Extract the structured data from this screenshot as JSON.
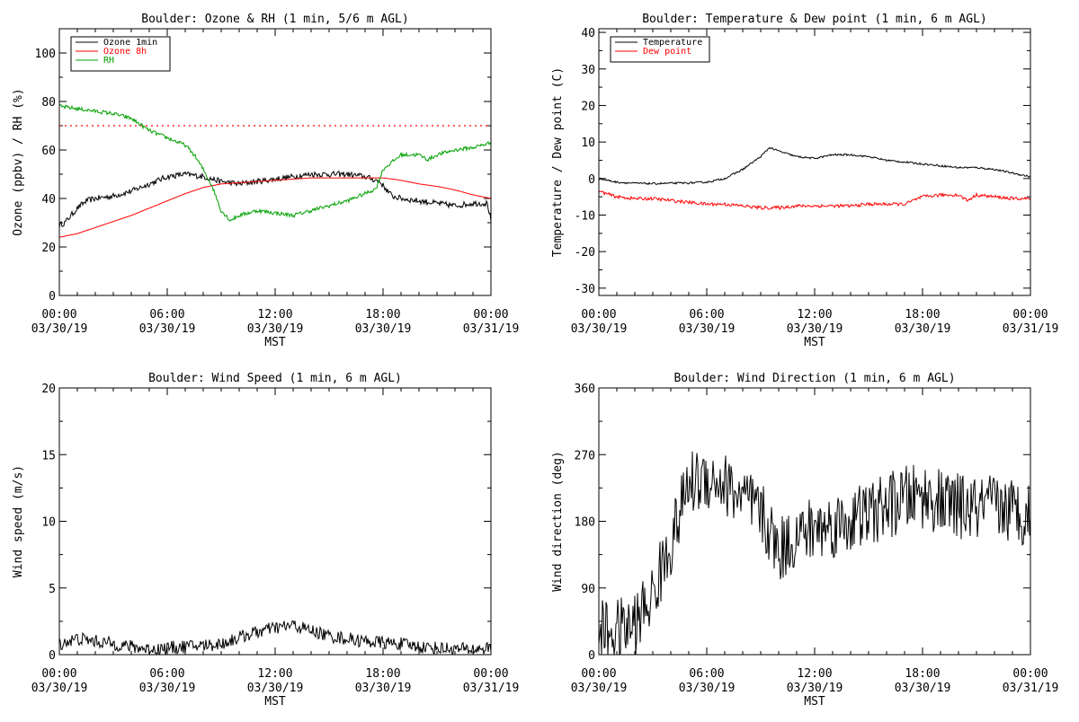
{
  "chart_data": [
    {
      "id": "ozone",
      "type": "line",
      "title": "Boulder: Ozone & RH (1 min, 5/6 m AGL)",
      "ylabel": "Ozone (ppbv) / RH (%)",
      "xlabel": "MST",
      "xlim_hours": [
        0,
        24
      ],
      "ylim": [
        0,
        110
      ],
      "yticks": [
        0,
        20,
        40,
        60,
        80,
        100
      ],
      "xticks": [
        {
          "h": 0,
          "time": "00:00",
          "date": "03/30/19"
        },
        {
          "h": 6,
          "time": "06:00",
          "date": "03/30/19"
        },
        {
          "h": 12,
          "time": "12:00",
          "date": "03/30/19"
        },
        {
          "h": 18,
          "time": "18:00",
          "date": "03/30/19"
        },
        {
          "h": 24,
          "time": "00:00",
          "date": "03/31/19"
        }
      ],
      "legend_position": "top-left",
      "reference_line": {
        "y": 70,
        "color": "#ff0000",
        "style": "dotted"
      },
      "series": [
        {
          "name": "Ozone 1min",
          "color": "#000000",
          "noise": 1.2,
          "points": [
            [
              0,
              29
            ],
            [
              0.3,
              30
            ],
            [
              1,
              36
            ],
            [
              1.5,
              39
            ],
            [
              2,
              40
            ],
            [
              3,
              41
            ],
            [
              4,
              43
            ],
            [
              5,
              46
            ],
            [
              6,
              49
            ],
            [
              7,
              50
            ],
            [
              8,
              49
            ],
            [
              9,
              47
            ],
            [
              10,
              46
            ],
            [
              11,
              47
            ],
            [
              12,
              48
            ],
            [
              13,
              49
            ],
            [
              14,
              50
            ],
            [
              15,
              50
            ],
            [
              16,
              50
            ],
            [
              17,
              49
            ],
            [
              17.8,
              47
            ],
            [
              18.5,
              41
            ],
            [
              19,
              40
            ],
            [
              20,
              39
            ],
            [
              21,
              38
            ],
            [
              22,
              37
            ],
            [
              23,
              38
            ],
            [
              23.8,
              38
            ],
            [
              24,
              31
            ]
          ]
        },
        {
          "name": "Ozone 8h",
          "color": "#ff0000",
          "noise": 0,
          "points": [
            [
              0,
              24
            ],
            [
              1,
              25.5
            ],
            [
              2,
              28
            ],
            [
              3,
              30.5
            ],
            [
              4,
              33
            ],
            [
              5,
              36
            ],
            [
              6,
              39
            ],
            [
              7,
              42
            ],
            [
              8,
              44.5
            ],
            [
              9,
              46
            ],
            [
              10,
              46.5
            ],
            [
              11,
              47
            ],
            [
              12,
              47.5
            ],
            [
              13,
              48
            ],
            [
              14,
              48.5
            ],
            [
              15,
              48.5
            ],
            [
              16,
              48.5
            ],
            [
              17,
              48.5
            ],
            [
              18,
              48.5
            ],
            [
              19,
              47.5
            ],
            [
              20,
              46
            ],
            [
              21,
              45
            ],
            [
              22,
              43.5
            ],
            [
              23,
              41.5
            ],
            [
              24,
              40
            ]
          ]
        },
        {
          "name": "RH",
          "color": "#00a000",
          "noise": 0.8,
          "points": [
            [
              0,
              78
            ],
            [
              1,
              77
            ],
            [
              2,
              76
            ],
            [
              3,
              75
            ],
            [
              4,
              73
            ],
            [
              5,
              68
            ],
            [
              6,
              65
            ],
            [
              7,
              62
            ],
            [
              7.5,
              58
            ],
            [
              8,
              52
            ],
            [
              8.5,
              45
            ],
            [
              9,
              35
            ],
            [
              9.5,
              31
            ],
            [
              10,
              33
            ],
            [
              11,
              35
            ],
            [
              12,
              34
            ],
            [
              13,
              33
            ],
            [
              14,
              35
            ],
            [
              15,
              37
            ],
            [
              16,
              39
            ],
            [
              17,
              42
            ],
            [
              17.6,
              44
            ],
            [
              18,
              52
            ],
            [
              18.5,
              55
            ],
            [
              19,
              58
            ],
            [
              20,
              58
            ],
            [
              20.5,
              56
            ],
            [
              21,
              58
            ],
            [
              22,
              60
            ],
            [
              23,
              61
            ],
            [
              24,
              63
            ]
          ]
        }
      ]
    },
    {
      "id": "temp",
      "type": "line",
      "title": "Boulder: Temperature & Dew point (1 min, 6 m AGL)",
      "ylabel": "Temperature / Dew point (C)",
      "xlabel": "MST",
      "xlim_hours": [
        0,
        24
      ],
      "ylim": [
        -32,
        41
      ],
      "yticks": [
        -30,
        -20,
        -10,
        0,
        10,
        20,
        30,
        40
      ],
      "xticks": [
        {
          "h": 0,
          "time": "00:00",
          "date": "03/30/19"
        },
        {
          "h": 6,
          "time": "06:00",
          "date": "03/30/19"
        },
        {
          "h": 12,
          "time": "12:00",
          "date": "03/30/19"
        },
        {
          "h": 18,
          "time": "18:00",
          "date": "03/30/19"
        },
        {
          "h": 24,
          "time": "00:00",
          "date": "03/31/19"
        }
      ],
      "legend_position": "top-left",
      "series": [
        {
          "name": "Temperature",
          "color": "#000000",
          "noise": 0.25,
          "points": [
            [
              0,
              0
            ],
            [
              1,
              -1
            ],
            [
              2,
              -1.3
            ],
            [
              3,
              -1.4
            ],
            [
              4,
              -1.3
            ],
            [
              5,
              -1.2
            ],
            [
              6,
              -1
            ],
            [
              7,
              0
            ],
            [
              8,
              2.5
            ],
            [
              9,
              6
            ],
            [
              9.5,
              8.5
            ],
            [
              10,
              7.5
            ],
            [
              11,
              6
            ],
            [
              12,
              5.5
            ],
            [
              13,
              6.5
            ],
            [
              14,
              6.5
            ],
            [
              15,
              6
            ],
            [
              16,
              5
            ],
            [
              17,
              4.5
            ],
            [
              18,
              4
            ],
            [
              19,
              3.5
            ],
            [
              20,
              3
            ],
            [
              21,
              3
            ],
            [
              22,
              2.5
            ],
            [
              23,
              1.5
            ],
            [
              24,
              0.5
            ]
          ]
        },
        {
          "name": "Dew point",
          "color": "#ff0000",
          "noise": 0.45,
          "points": [
            [
              0,
              -3.5
            ],
            [
              1,
              -5
            ],
            [
              2,
              -5.5
            ],
            [
              3,
              -5.5
            ],
            [
              4,
              -6
            ],
            [
              5,
              -6.5
            ],
            [
              6,
              -7
            ],
            [
              7,
              -7
            ],
            [
              8,
              -7.5
            ],
            [
              9,
              -8
            ],
            [
              10,
              -8
            ],
            [
              11,
              -7.5
            ],
            [
              12,
              -7.5
            ],
            [
              13,
              -7.5
            ],
            [
              14,
              -7.5
            ],
            [
              15,
              -7
            ],
            [
              16,
              -7
            ],
            [
              17,
              -7
            ],
            [
              18,
              -5
            ],
            [
              19,
              -4.5
            ],
            [
              20,
              -4.5
            ],
            [
              20.5,
              -6
            ],
            [
              21,
              -4.5
            ],
            [
              22,
              -5
            ],
            [
              23,
              -5.5
            ],
            [
              24,
              -5.5
            ]
          ]
        }
      ]
    },
    {
      "id": "wspd",
      "type": "line",
      "title": "Boulder: Wind Speed (1 min, 6 m AGL)",
      "ylabel": "Wind speed (m/s)",
      "xlabel": "MST",
      "xlim_hours": [
        0,
        24
      ],
      "ylim": [
        0,
        20
      ],
      "yticks": [
        0,
        5,
        10,
        15,
        20
      ],
      "xticks": [
        {
          "h": 0,
          "time": "00:00",
          "date": "03/30/19"
        },
        {
          "h": 6,
          "time": "06:00",
          "date": "03/30/19"
        },
        {
          "h": 12,
          "time": "12:00",
          "date": "03/30/19"
        },
        {
          "h": 18,
          "time": "18:00",
          "date": "03/30/19"
        },
        {
          "h": 24,
          "time": "00:00",
          "date": "03/31/19"
        }
      ],
      "series": [
        {
          "name": "",
          "color": "#000000",
          "noise": 0.5,
          "floor": 0,
          "points": [
            [
              0,
              0.8
            ],
            [
              1,
              1.2
            ],
            [
              2,
              1
            ],
            [
              3,
              0.8
            ],
            [
              4,
              0.6
            ],
            [
              5,
              0.4
            ],
            [
              6,
              0.5
            ],
            [
              7,
              0.6
            ],
            [
              8,
              0.7
            ],
            [
              9,
              0.8
            ],
            [
              10,
              1.3
            ],
            [
              11,
              1.7
            ],
            [
              12,
              2
            ],
            [
              13,
              2.2
            ],
            [
              14,
              1.8
            ],
            [
              15,
              1.4
            ],
            [
              16,
              1.2
            ],
            [
              17,
              1
            ],
            [
              18,
              0.9
            ],
            [
              19,
              0.8
            ],
            [
              20,
              0.6
            ],
            [
              21,
              0.5
            ],
            [
              22,
              0.4
            ],
            [
              23,
              0.4
            ],
            [
              24,
              0.5
            ]
          ]
        }
      ]
    },
    {
      "id": "wdir",
      "type": "line",
      "title": "Boulder: Wind Direction (1 min, 6 m AGL)",
      "ylabel": "Wind direction (deg)",
      "xlabel": "MST",
      "xlim_hours": [
        0,
        24
      ],
      "ylim": [
        0,
        360
      ],
      "yticks": [
        0,
        90,
        180,
        270,
        360
      ],
      "xticks": [
        {
          "h": 0,
          "time": "00:00",
          "date": "03/30/19"
        },
        {
          "h": 6,
          "time": "06:00",
          "date": "03/30/19"
        },
        {
          "h": 12,
          "time": "12:00",
          "date": "03/30/19"
        },
        {
          "h": 18,
          "time": "18:00",
          "date": "03/30/19"
        },
        {
          "h": 24,
          "time": "00:00",
          "date": "03/31/19"
        }
      ],
      "series": [
        {
          "name": "",
          "color": "#000000",
          "noise": 45,
          "floor": 0,
          "ceil": 360,
          "points": [
            [
              0,
              30
            ],
            [
              1,
              30
            ],
            [
              2,
              40
            ],
            [
              3,
              80
            ],
            [
              4,
              150
            ],
            [
              5,
              230
            ],
            [
              6,
              240
            ],
            [
              7,
              230
            ],
            [
              8,
              210
            ],
            [
              9,
              190
            ],
            [
              10,
              140
            ],
            [
              11,
              160
            ],
            [
              12,
              170
            ],
            [
              13,
              175
            ],
            [
              14,
              180
            ],
            [
              15,
              190
            ],
            [
              16,
              200
            ],
            [
              17,
              210
            ],
            [
              18,
              215
            ],
            [
              19,
              205
            ],
            [
              20,
              200
            ],
            [
              21,
              195
            ],
            [
              22,
              200
            ],
            [
              23,
              195
            ],
            [
              24,
              190
            ]
          ]
        }
      ]
    }
  ]
}
